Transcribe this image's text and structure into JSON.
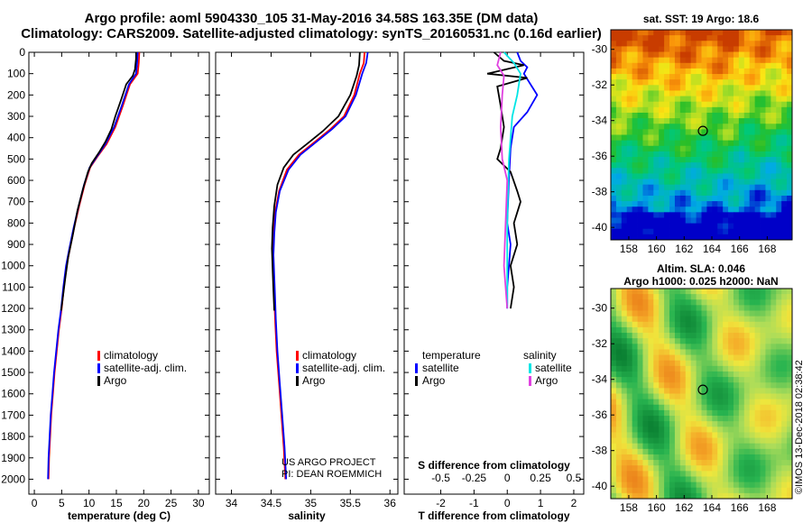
{
  "title_line1": "Argo profile: aoml 5904330_105 31-May-2016 34.58S 163.35E (DM data)",
  "title_line2": "Climatology: CARS2009. Satellite-adjusted climatology: synTS_20160531.nc (0.16d earlier)",
  "credit": [
    "US ARGO PROJECT",
    "PI: DEAN ROEMMICH"
  ],
  "sst_title": "sat. SST: 19 Argo: 18.6",
  "sla_title": [
    "Altim. SLA: 0.046",
    "Argo h1000: 0.025 h2000: NaN"
  ],
  "imos_stamp": "©IMOS 13-Dec-2018 02:38:42",
  "colors": {
    "climatology": "#ff0000",
    "satellite": "#0000ff",
    "argo": "#000000",
    "sat_salinity": "#00e5e5",
    "argo_salinity": "#e040e0"
  },
  "chart_data": [
    {
      "type": "line",
      "xlabel": "temperature (deg C)",
      "xlim": [
        -1,
        32
      ],
      "ylim": [
        2070,
        0
      ],
      "xticks": [
        "0",
        "5",
        "10",
        "15",
        "20",
        "25",
        "30"
      ],
      "yticks": [
        "0",
        "100",
        "200",
        "300",
        "400",
        "500",
        "600",
        "700",
        "800",
        "900",
        "1000",
        "1100",
        "1200",
        "1300",
        "1400",
        "1500",
        "1600",
        "1700",
        "1800",
        "1900",
        "2000"
      ],
      "legend": [
        "climatology",
        "satellite-adj. clim.",
        "Argo"
      ],
      "series": [
        {
          "name": "climatology",
          "points": [
            [
              19.2,
              0
            ],
            [
              19.1,
              50
            ],
            [
              18.9,
              100
            ],
            [
              17.5,
              150
            ],
            [
              16.2,
              250
            ],
            [
              14.8,
              350
            ],
            [
              13.2,
              430
            ],
            [
              11.5,
              490
            ],
            [
              10.2,
              540
            ],
            [
              9.2,
              620
            ],
            [
              8.2,
              720
            ],
            [
              7.3,
              820
            ],
            [
              6.5,
              920
            ],
            [
              5.9,
              1000
            ],
            [
              5.4,
              1100
            ],
            [
              5.0,
              1200
            ],
            [
              4.5,
              1300
            ],
            [
              4.1,
              1400
            ],
            [
              3.7,
              1500
            ],
            [
              3.4,
              1600
            ],
            [
              3.1,
              1700
            ],
            [
              2.9,
              1800
            ],
            [
              2.7,
              1900
            ],
            [
              2.6,
              2000
            ]
          ]
        },
        {
          "name": "satellite-adj. clim.",
          "points": [
            [
              18.9,
              0
            ],
            [
              18.8,
              50
            ],
            [
              18.6,
              100
            ],
            [
              17.3,
              150
            ],
            [
              16.0,
              250
            ],
            [
              14.6,
              350
            ],
            [
              13.0,
              430
            ],
            [
              11.4,
              490
            ],
            [
              10.1,
              540
            ],
            [
              9.1,
              620
            ],
            [
              8.1,
              720
            ],
            [
              7.2,
              820
            ],
            [
              6.4,
              920
            ],
            [
              5.8,
              1000
            ],
            [
              5.3,
              1100
            ],
            [
              4.9,
              1200
            ],
            [
              4.4,
              1300
            ],
            [
              4.0,
              1400
            ],
            [
              3.6,
              1500
            ],
            [
              3.3,
              1600
            ],
            [
              3.0,
              1700
            ],
            [
              2.8,
              1800
            ],
            [
              2.6,
              1900
            ],
            [
              2.5,
              2000
            ]
          ]
        },
        {
          "name": "Argo",
          "points": [
            [
              18.6,
              0
            ],
            [
              18.6,
              30
            ],
            [
              18.4,
              80
            ],
            [
              18.0,
              110
            ],
            [
              16.8,
              150
            ],
            [
              15.9,
              220
            ],
            [
              14.8,
              300
            ],
            [
              14.1,
              360
            ],
            [
              13.0,
              420
            ],
            [
              11.8,
              470
            ],
            [
              10.5,
              520
            ],
            [
              9.8,
              560
            ],
            [
              8.9,
              640
            ],
            [
              7.9,
              740
            ],
            [
              7.0,
              860
            ],
            [
              6.2,
              960
            ],
            [
              5.7,
              1050
            ],
            [
              5.2,
              1150
            ],
            [
              4.9,
              1210
            ]
          ]
        }
      ]
    },
    {
      "type": "line",
      "xlabel": "salinity",
      "xlim": [
        33.8,
        36.1
      ],
      "ylim": [
        2070,
        0
      ],
      "xticks": [
        "34",
        "34.5",
        "35",
        "35.5",
        "36"
      ],
      "legend": [
        "climatology",
        "satellite-adj. clim.",
        "Argo"
      ],
      "series": [
        {
          "name": "climatology",
          "points": [
            [
              35.68,
              0
            ],
            [
              35.67,
              50
            ],
            [
              35.62,
              100
            ],
            [
              35.55,
              200
            ],
            [
              35.42,
              300
            ],
            [
              35.25,
              360
            ],
            [
              35.05,
              420
            ],
            [
              34.85,
              480
            ],
            [
              34.7,
              550
            ],
            [
              34.6,
              650
            ],
            [
              34.55,
              750
            ],
            [
              34.53,
              850
            ],
            [
              34.52,
              950
            ],
            [
              34.53,
              1050
            ],
            [
              34.54,
              1150
            ],
            [
              34.55,
              1250
            ],
            [
              34.57,
              1400
            ],
            [
              34.6,
              1550
            ],
            [
              34.63,
              1700
            ],
            [
              34.66,
              1850
            ],
            [
              34.68,
              2000
            ]
          ]
        },
        {
          "name": "satellite-adj. clim.",
          "points": [
            [
              35.72,
              0
            ],
            [
              35.7,
              50
            ],
            [
              35.65,
              100
            ],
            [
              35.57,
              200
            ],
            [
              35.44,
              300
            ],
            [
              35.27,
              360
            ],
            [
              35.07,
              420
            ],
            [
              34.87,
              480
            ],
            [
              34.72,
              550
            ],
            [
              34.61,
              650
            ],
            [
              34.56,
              750
            ],
            [
              34.54,
              850
            ],
            [
              34.53,
              950
            ],
            [
              34.54,
              1050
            ],
            [
              34.55,
              1150
            ],
            [
              34.56,
              1250
            ],
            [
              34.58,
              1400
            ],
            [
              34.61,
              1550
            ],
            [
              34.64,
              1700
            ],
            [
              34.67,
              1850
            ],
            [
              34.69,
              2000
            ]
          ]
        },
        {
          "name": "Argo",
          "points": [
            [
              35.62,
              0
            ],
            [
              35.61,
              60
            ],
            [
              35.58,
              110
            ],
            [
              35.5,
              200
            ],
            [
              35.35,
              300
            ],
            [
              35.15,
              370
            ],
            [
              34.95,
              430
            ],
            [
              34.78,
              480
            ],
            [
              34.66,
              540
            ],
            [
              34.58,
              620
            ],
            [
              34.54,
              720
            ],
            [
              34.52,
              820
            ],
            [
              34.51,
              920
            ],
            [
              34.52,
              1020
            ],
            [
              34.53,
              1120
            ],
            [
              34.54,
              1210
            ]
          ]
        }
      ]
    },
    {
      "type": "line",
      "xlabel": "T difference from climatology",
      "xlabel2": "S difference from climatology",
      "xlim": [
        -3.1,
        2.3
      ],
      "ylim": [
        2070,
        0
      ],
      "xticks": [
        "-2",
        "-1",
        "0",
        "1",
        "2"
      ],
      "xticks2": [
        "-0.5",
        "-0.25",
        "0",
        "0.25",
        "0.5"
      ],
      "legend_left_title": "temperature",
      "legend_right_title": "salinity",
      "legend_left": [
        "satellite",
        "Argo"
      ],
      "legend_right": [
        "satellite",
        "Argo"
      ],
      "series": [
        {
          "name": "satellite",
          "points": [
            [
              0.3,
              0
            ],
            [
              0.4,
              40
            ],
            [
              0.6,
              70
            ],
            [
              0.5,
              100
            ],
            [
              0.7,
              150
            ],
            [
              0.9,
              200
            ],
            [
              0.6,
              280
            ],
            [
              0.2,
              350
            ],
            [
              0.1,
              450
            ],
            [
              0.05,
              600
            ],
            [
              0.0,
              800
            ],
            [
              0.1,
              900
            ],
            [
              0.05,
              1000
            ],
            [
              0.0,
              1100
            ],
            [
              0.0,
              1200
            ]
          ]
        },
        {
          "name": "Argo",
          "points": [
            [
              -0.4,
              0
            ],
            [
              -0.1,
              40
            ],
            [
              0.5,
              60
            ],
            [
              -0.6,
              100
            ],
            [
              0.6,
              120
            ],
            [
              -0.3,
              160
            ],
            [
              -0.2,
              250
            ],
            [
              -0.1,
              350
            ],
            [
              -0.2,
              450
            ],
            [
              -0.3,
              500
            ],
            [
              0.1,
              560
            ],
            [
              0.3,
              650
            ],
            [
              0.4,
              700
            ],
            [
              0.2,
              800
            ],
            [
              0.3,
              900
            ],
            [
              0.1,
              1000
            ],
            [
              0.2,
              1100
            ],
            [
              0.1,
              1200
            ]
          ]
        },
        {
          "name": "satellite",
          "points": [
            [
              -0.1,
              0
            ],
            [
              0.2,
              50
            ],
            [
              0.4,
              100
            ],
            [
              0.3,
              200
            ],
            [
              0.15,
              300
            ],
            [
              0.05,
              500
            ],
            [
              0.0,
              800
            ],
            [
              0.0,
              1200
            ]
          ]
        },
        {
          "name": "Argo",
          "points": [
            [
              -0.2,
              0
            ],
            [
              -0.3,
              60
            ],
            [
              -0.1,
              110
            ],
            [
              -0.15,
              200
            ],
            [
              -0.2,
              350
            ],
            [
              -0.15,
              500
            ],
            [
              0.0,
              600
            ],
            [
              -0.05,
              800
            ],
            [
              -0.1,
              1000
            ],
            [
              0.0,
              1200
            ]
          ]
        }
      ]
    },
    {
      "type": "heatmap",
      "title": "sat. SST: 19 Argo: 18.6",
      "xticks": [
        "158",
        "160",
        "162",
        "164",
        "166",
        "168"
      ],
      "yticks": [
        "-30",
        "-32",
        "-34",
        "-36",
        "-38",
        "-40"
      ],
      "float_position": [
        163.35,
        -34.58
      ]
    },
    {
      "type": "heatmap",
      "title": "Altim. SLA: 0.046",
      "xticks": [
        "158",
        "160",
        "162",
        "164",
        "166",
        "168"
      ],
      "yticks": [
        "-30",
        "-32",
        "-34",
        "-36",
        "-38",
        "-40"
      ],
      "float_position": [
        163.35,
        -34.58
      ]
    }
  ]
}
